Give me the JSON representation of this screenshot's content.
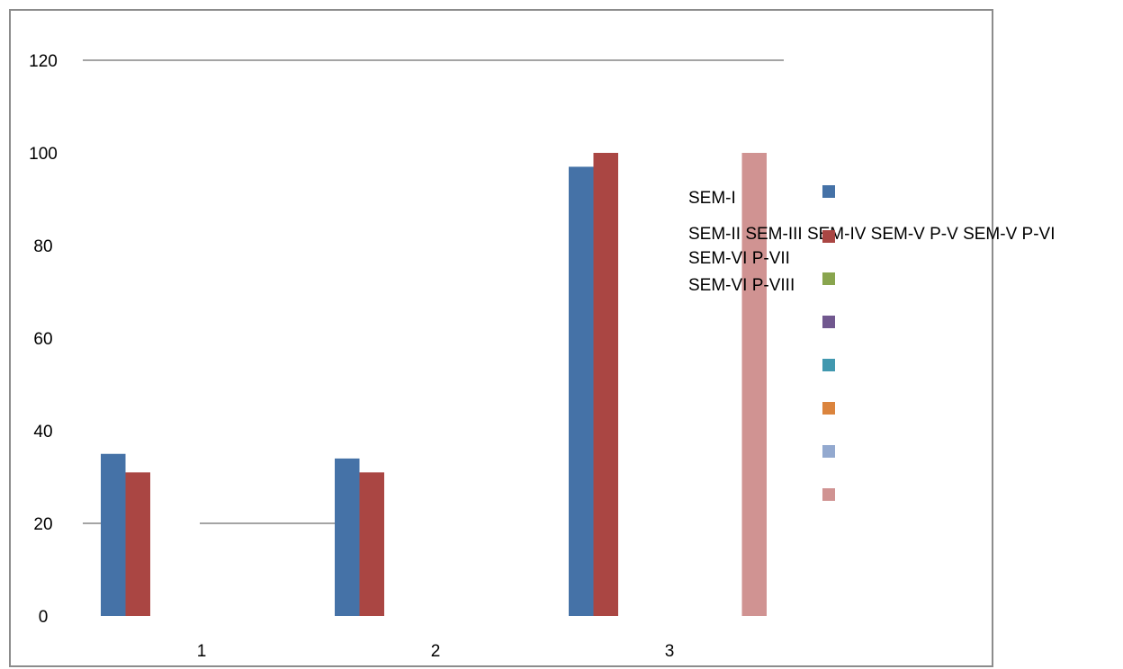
{
  "chart_data": {
    "type": "bar",
    "title": "",
    "xlabel": "",
    "ylabel": "",
    "categories": [
      "1",
      "2",
      "3"
    ],
    "y_ticks": [
      "0",
      "20",
      "40",
      "60",
      "80",
      "100",
      "120"
    ],
    "ylim": [
      0,
      120
    ],
    "grid": "irregular partial lines",
    "legend_position": "right",
    "series": [
      {
        "name": "SEM-I",
        "color": "#4572A7",
        "values": [
          35,
          34,
          97
        ]
      },
      {
        "name": "SEM-II",
        "color": "#AA4643",
        "values": [
          31,
          31,
          100
        ]
      },
      {
        "name": "SEM-III",
        "color": "#89A54E",
        "values": [
          null,
          null,
          null
        ]
      },
      {
        "name": "SEM-IV",
        "color": "#71588F",
        "values": [
          null,
          null,
          null
        ]
      },
      {
        "name": "SEM-V P-V",
        "color": "#4198AF",
        "values": [
          null,
          null,
          null
        ]
      },
      {
        "name": "SEM-V P-VI",
        "color": "#DB843D",
        "values": [
          null,
          null,
          null
        ]
      },
      {
        "name": "SEM-VI P-VII",
        "color": "#93A9CF",
        "values": [
          null,
          null,
          null
        ]
      },
      {
        "name": "SEM-VI P-VIII",
        "color": "#D09392",
        "values": [
          null,
          null,
          100
        ]
      }
    ],
    "legend_lines": [
      "SEM-I",
      "SEM-II SEM-III SEM-IV SEM-V P-V SEM-V P-VI",
      "SEM-VI P-VII",
      "SEM-VI P-VIII"
    ]
  }
}
